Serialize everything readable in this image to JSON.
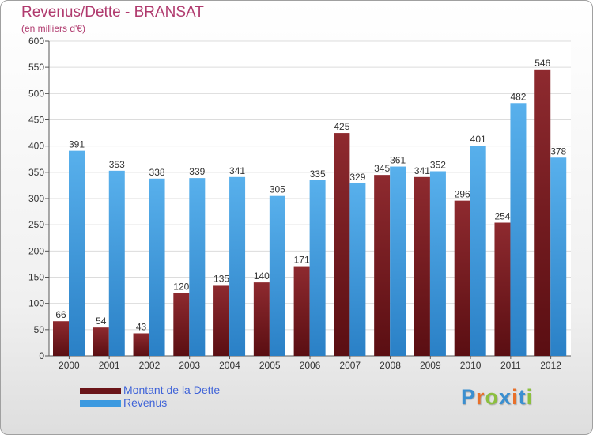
{
  "chart_data": {
    "type": "bar",
    "title": "Revenus/Dette - BRANSAT",
    "subtitle": "(en milliers d'€)",
    "xlabel": "",
    "ylabel": "",
    "ylim": [
      0,
      600
    ],
    "yticks": [
      "0",
      "50",
      "100",
      "150",
      "200",
      "250",
      "300",
      "350",
      "400",
      "450",
      "500",
      "550",
      "600"
    ],
    "grid": true,
    "legend_position": "bottom-left",
    "categories": [
      "2000",
      "2001",
      "2002",
      "2003",
      "2004",
      "2005",
      "2006",
      "2007",
      "2008",
      "2009",
      "2010",
      "2011",
      "2012"
    ],
    "series": [
      {
        "name": "Montant de la Dette",
        "color": "#7b1a1e",
        "values": [
          66,
          54,
          43,
          120,
          135,
          140,
          171,
          425,
          345,
          341,
          296,
          254,
          546
        ]
      },
      {
        "name": "Revenus",
        "color": "#3d9ae0",
        "values": [
          391,
          353,
          338,
          339,
          341,
          305,
          335,
          329,
          361,
          352,
          401,
          482,
          378
        ]
      }
    ]
  },
  "logo": {
    "text": "Proxiti",
    "letter_colors": [
      "#3a8fd0",
      "#e8702a",
      "#8cbf3f",
      "#3a8fd0",
      "#e8702a",
      "#3a8fd0",
      "#8cbf3f"
    ]
  }
}
